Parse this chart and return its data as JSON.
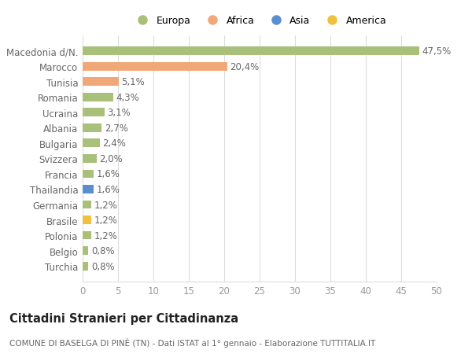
{
  "categories": [
    "Turchia",
    "Belgio",
    "Polonia",
    "Brasile",
    "Germania",
    "Thailandia",
    "Francia",
    "Svizzera",
    "Bulgaria",
    "Albania",
    "Ucraina",
    "Romania",
    "Tunisia",
    "Marocco",
    "Macedonia d/N."
  ],
  "values": [
    0.8,
    0.8,
    1.2,
    1.2,
    1.2,
    1.6,
    1.6,
    2.0,
    2.4,
    2.7,
    3.1,
    4.3,
    5.1,
    20.4,
    47.5
  ],
  "labels": [
    "0,8%",
    "0,8%",
    "1,2%",
    "1,2%",
    "1,2%",
    "1,6%",
    "1,6%",
    "2,0%",
    "2,4%",
    "2,7%",
    "3,1%",
    "4,3%",
    "5,1%",
    "20,4%",
    "47,5%"
  ],
  "colors": [
    "#a8c07a",
    "#a8c07a",
    "#a8c07a",
    "#f0c040",
    "#a8c07a",
    "#5b8ecf",
    "#a8c07a",
    "#a8c07a",
    "#a8c07a",
    "#a8c07a",
    "#a8c07a",
    "#a8c07a",
    "#f0a878",
    "#f0a878",
    "#a8c07a"
  ],
  "legend_labels": [
    "Europa",
    "Africa",
    "Asia",
    "America"
  ],
  "legend_colors": [
    "#a8c07a",
    "#f0a878",
    "#5b8ecf",
    "#f0c040"
  ],
  "title": "Cittadini Stranieri per Cittadinanza",
  "subtitle": "COMUNE DI BASELGA DI PINÈ (TN) - Dati ISTAT al 1° gennaio - Elaborazione TUTTITALIA.IT",
  "xlim": [
    0,
    50
  ],
  "xticks": [
    0,
    5,
    10,
    15,
    20,
    25,
    30,
    35,
    40,
    45,
    50
  ],
  "background_color": "#ffffff",
  "grid_color": "#dddddd",
  "bar_height": 0.55,
  "label_fontsize": 8.5,
  "tick_fontsize": 8.5,
  "title_fontsize": 10.5,
  "subtitle_fontsize": 7.5
}
